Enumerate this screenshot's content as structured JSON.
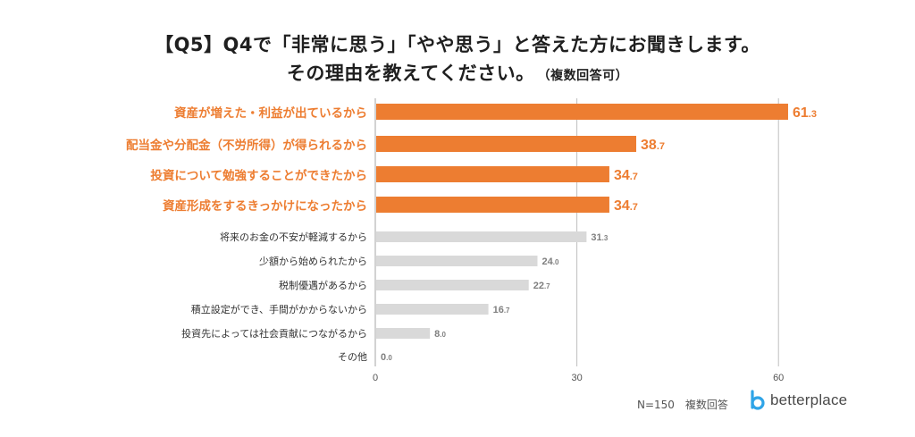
{
  "title": {
    "line1": "【Q5】Q4で「非常に思う」「やや思う」と答えた方にお聞きします。",
    "line2": "その理由を教えてください。",
    "note": "（複数回答可）"
  },
  "footer": {
    "sample": "N=150　複数回答"
  },
  "logo": {
    "text": "betterplace"
  },
  "colors": {
    "highlight": "#ED7D31",
    "normal": "#D9D9D9",
    "grid": "#BFBFBF"
  },
  "chart_data": {
    "type": "bar",
    "orientation": "horizontal",
    "categories": [
      "資産が増えた・利益が出ているから",
      "配当金や分配金（不労所得）が得られるから",
      "投資について勉強することができたから",
      "資産形成をするきっかけになったから",
      "将来のお金の不安が軽減するから",
      "少額から始められたから",
      "税制優遇があるから",
      "積立設定ができ、手間がかからないから",
      "投資先によっては社会貢献につながるから",
      "その他"
    ],
    "values": [
      61.3,
      38.7,
      34.7,
      34.7,
      31.3,
      24.0,
      22.7,
      16.7,
      8.0,
      0.0
    ],
    "value_labels": [
      [
        "61",
        ".3"
      ],
      [
        "38",
        ".7"
      ],
      [
        "34",
        ".7"
      ],
      [
        "34",
        ".7"
      ],
      [
        "31",
        ".3"
      ],
      [
        "24",
        ".0"
      ],
      [
        "22",
        ".7"
      ],
      [
        "16",
        ".7"
      ],
      [
        "8",
        ".0"
      ],
      [
        "0",
        ".0"
      ]
    ],
    "highlighted": [
      true,
      true,
      true,
      true,
      false,
      false,
      false,
      false,
      false,
      false
    ],
    "xlim": [
      0,
      60
    ],
    "xticks": [
      "0",
      "30",
      "60"
    ],
    "grid": true
  }
}
